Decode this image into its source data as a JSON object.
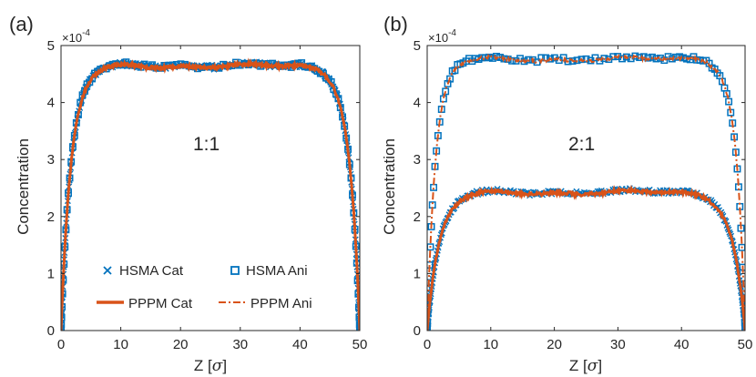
{
  "figure_title": "",
  "colors": {
    "blue": "#0072BD",
    "orange": "#D95319",
    "axis": "#262626"
  },
  "legend": {
    "hsma_cat": "HSMA Cat",
    "hsma_ani": "HSMA Ani",
    "pppm_cat": "PPPM Cat",
    "pppm_ani": "PPPM Ani"
  },
  "chart_data": [
    {
      "panel": "(a)",
      "type": "scatter",
      "annotation": "1:1",
      "title": "",
      "xlabel": "Z [",
      "xlabel_symbol": "σ",
      "xlabel_close": "]",
      "ylabel": "Concentration",
      "y_exponent_prefix": "×10",
      "y_exponent_power": "-4",
      "xlim": [
        0,
        50
      ],
      "ylim": [
        0,
        5
      ],
      "x_ticks": [
        "0",
        "10",
        "20",
        "30",
        "40",
        "50"
      ],
      "y_ticks": [
        "0",
        "1",
        "2",
        "3",
        "4",
        "5"
      ],
      "legend_location": "inside-bottom",
      "series": [
        {
          "name": "HSMA Cat",
          "style": "x-marker",
          "color": "#0072BD",
          "plateau": 4.65,
          "rise": 1.7,
          "noise": 0.04,
          "n_points": 260
        },
        {
          "name": "HSMA Ani",
          "style": "square-marker",
          "color": "#0072BD",
          "plateau": 4.65,
          "rise": 1.7,
          "noise": 0.04,
          "n_points": 110
        },
        {
          "name": "PPPM Cat",
          "style": "solid-line",
          "color": "#D95319",
          "plateau": 4.64,
          "rise": 1.7,
          "noise": 0.03,
          "n_points": 400
        },
        {
          "name": "PPPM Ani",
          "style": "dashdot-line",
          "color": "#D95319",
          "plateau": 4.64,
          "rise": 1.7,
          "noise": 0.03,
          "n_points": 400
        }
      ]
    },
    {
      "panel": "(b)",
      "type": "scatter",
      "annotation": "2:1",
      "title": "",
      "xlabel": "Z [",
      "xlabel_symbol": "σ",
      "xlabel_close": "]",
      "ylabel": "Concentration",
      "y_exponent_prefix": "×10",
      "y_exponent_power": "-4",
      "xlim": [
        0,
        50
      ],
      "ylim": [
        0,
        5
      ],
      "x_ticks": [
        "0",
        "10",
        "20",
        "30",
        "40",
        "50"
      ],
      "y_ticks": [
        "0",
        "1",
        "2",
        "3",
        "4",
        "5"
      ],
      "series": [
        {
          "name": "HSMA Cat",
          "style": "x-marker",
          "color": "#0072BD",
          "plateau": 2.43,
          "rise": 1.9,
          "noise": 0.035,
          "n_points": 260
        },
        {
          "name": "HSMA Ani",
          "style": "square-marker",
          "color": "#0072BD",
          "plateau": 4.77,
          "rise": 1.35,
          "noise": 0.04,
          "n_points": 110
        },
        {
          "name": "PPPM Cat",
          "style": "solid-line",
          "color": "#D95319",
          "plateau": 2.42,
          "rise": 1.9,
          "noise": 0.03,
          "n_points": 400
        },
        {
          "name": "PPPM Ani",
          "style": "dashdot-line",
          "color": "#D95319",
          "plateau": 4.76,
          "rise": 1.35,
          "noise": 0.03,
          "n_points": 400
        }
      ]
    }
  ]
}
